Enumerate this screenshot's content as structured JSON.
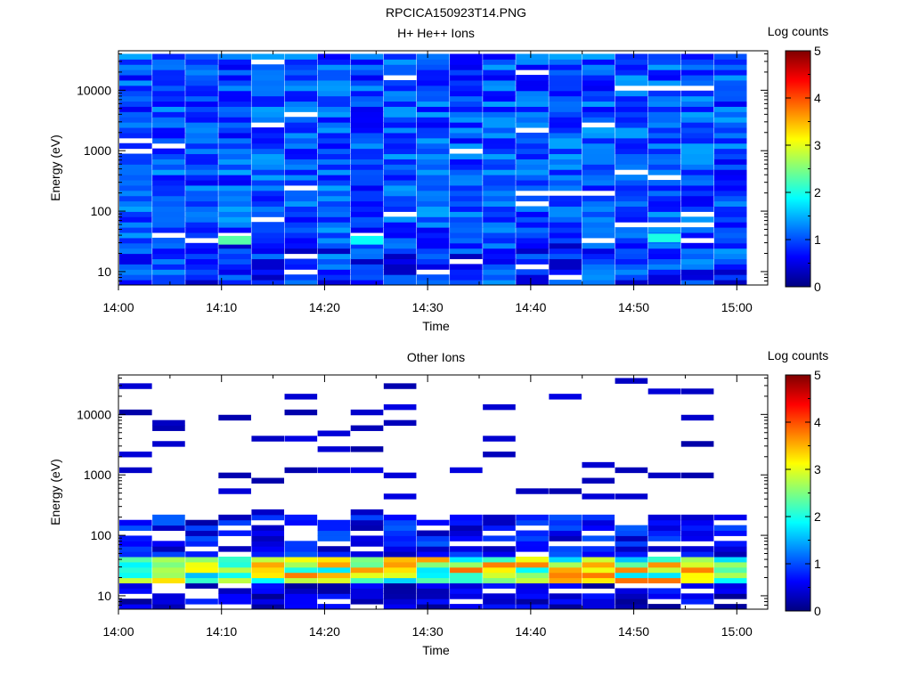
{
  "figure_title": "RPCICA150923T14.PNG",
  "colors": {
    "colormap": [
      "#00007f",
      "#0000ff",
      "#007fff",
      "#00ffff",
      "#7fff7f",
      "#ffff00",
      "#ff7f00",
      "#ff0000",
      "#7f0000"
    ]
  },
  "chart_data": [
    {
      "type": "heatmap",
      "title": "H+ He++ Ions",
      "xlabel": "Time",
      "ylabel": "Energy (eV)",
      "y_scale": "log",
      "ylim": [
        6,
        45000
      ],
      "xlim": [
        "14:00",
        "15:03"
      ],
      "x_ticks": [
        "14:00",
        "14:10",
        "14:20",
        "14:30",
        "14:40",
        "14:50",
        "15:00"
      ],
      "y_ticks": [
        {
          "value": 10,
          "label": "10"
        },
        {
          "value": 100,
          "label": "100"
        },
        {
          "value": 1000,
          "label": "1000"
        },
        {
          "value": 10000,
          "label": "10000"
        }
      ],
      "colorbar": {
        "label": "Log counts",
        "range": [
          0,
          5
        ],
        "ticks": [
          "0",
          "1",
          "2",
          "3",
          "4",
          "5"
        ]
      },
      "time_bins": 19,
      "typical_log_counts": {
        "low_energy_below_30eV": 0.9,
        "mid_energy": 1.0,
        "high_energy_above_1000eV": 1.0
      },
      "notable_cells": [
        {
          "time": "14:11",
          "energy": 33,
          "log_counts": 2.3
        },
        {
          "time": "14:24",
          "energy": 33,
          "log_counts": 1.9
        },
        {
          "time": "14:53",
          "energy": 36,
          "log_counts": 2.0
        }
      ]
    },
    {
      "type": "heatmap",
      "title": "Other Ions",
      "xlabel": "Time",
      "ylabel": "Energy (eV)",
      "y_scale": "log",
      "ylim": [
        6,
        45000
      ],
      "xlim": [
        "14:00",
        "15:03"
      ],
      "x_ticks": [
        "14:00",
        "14:10",
        "14:20",
        "14:30",
        "14:40",
        "14:50",
        "15:00"
      ],
      "y_ticks": [
        {
          "value": 10,
          "label": "10"
        },
        {
          "value": 100,
          "label": "100"
        },
        {
          "value": 1000,
          "label": "1000"
        },
        {
          "value": 10000,
          "label": "10000"
        }
      ],
      "colorbar": {
        "label": "Log counts",
        "range": [
          0,
          5
        ],
        "ticks": [
          "0",
          "1",
          "2",
          "3",
          "4",
          "5"
        ]
      },
      "time_bins": 19,
      "peak_band": {
        "energy_range_eV": [
          15,
          45
        ],
        "peak_log_counts": 3.9
      },
      "sparse_above_eV": 220
    }
  ]
}
